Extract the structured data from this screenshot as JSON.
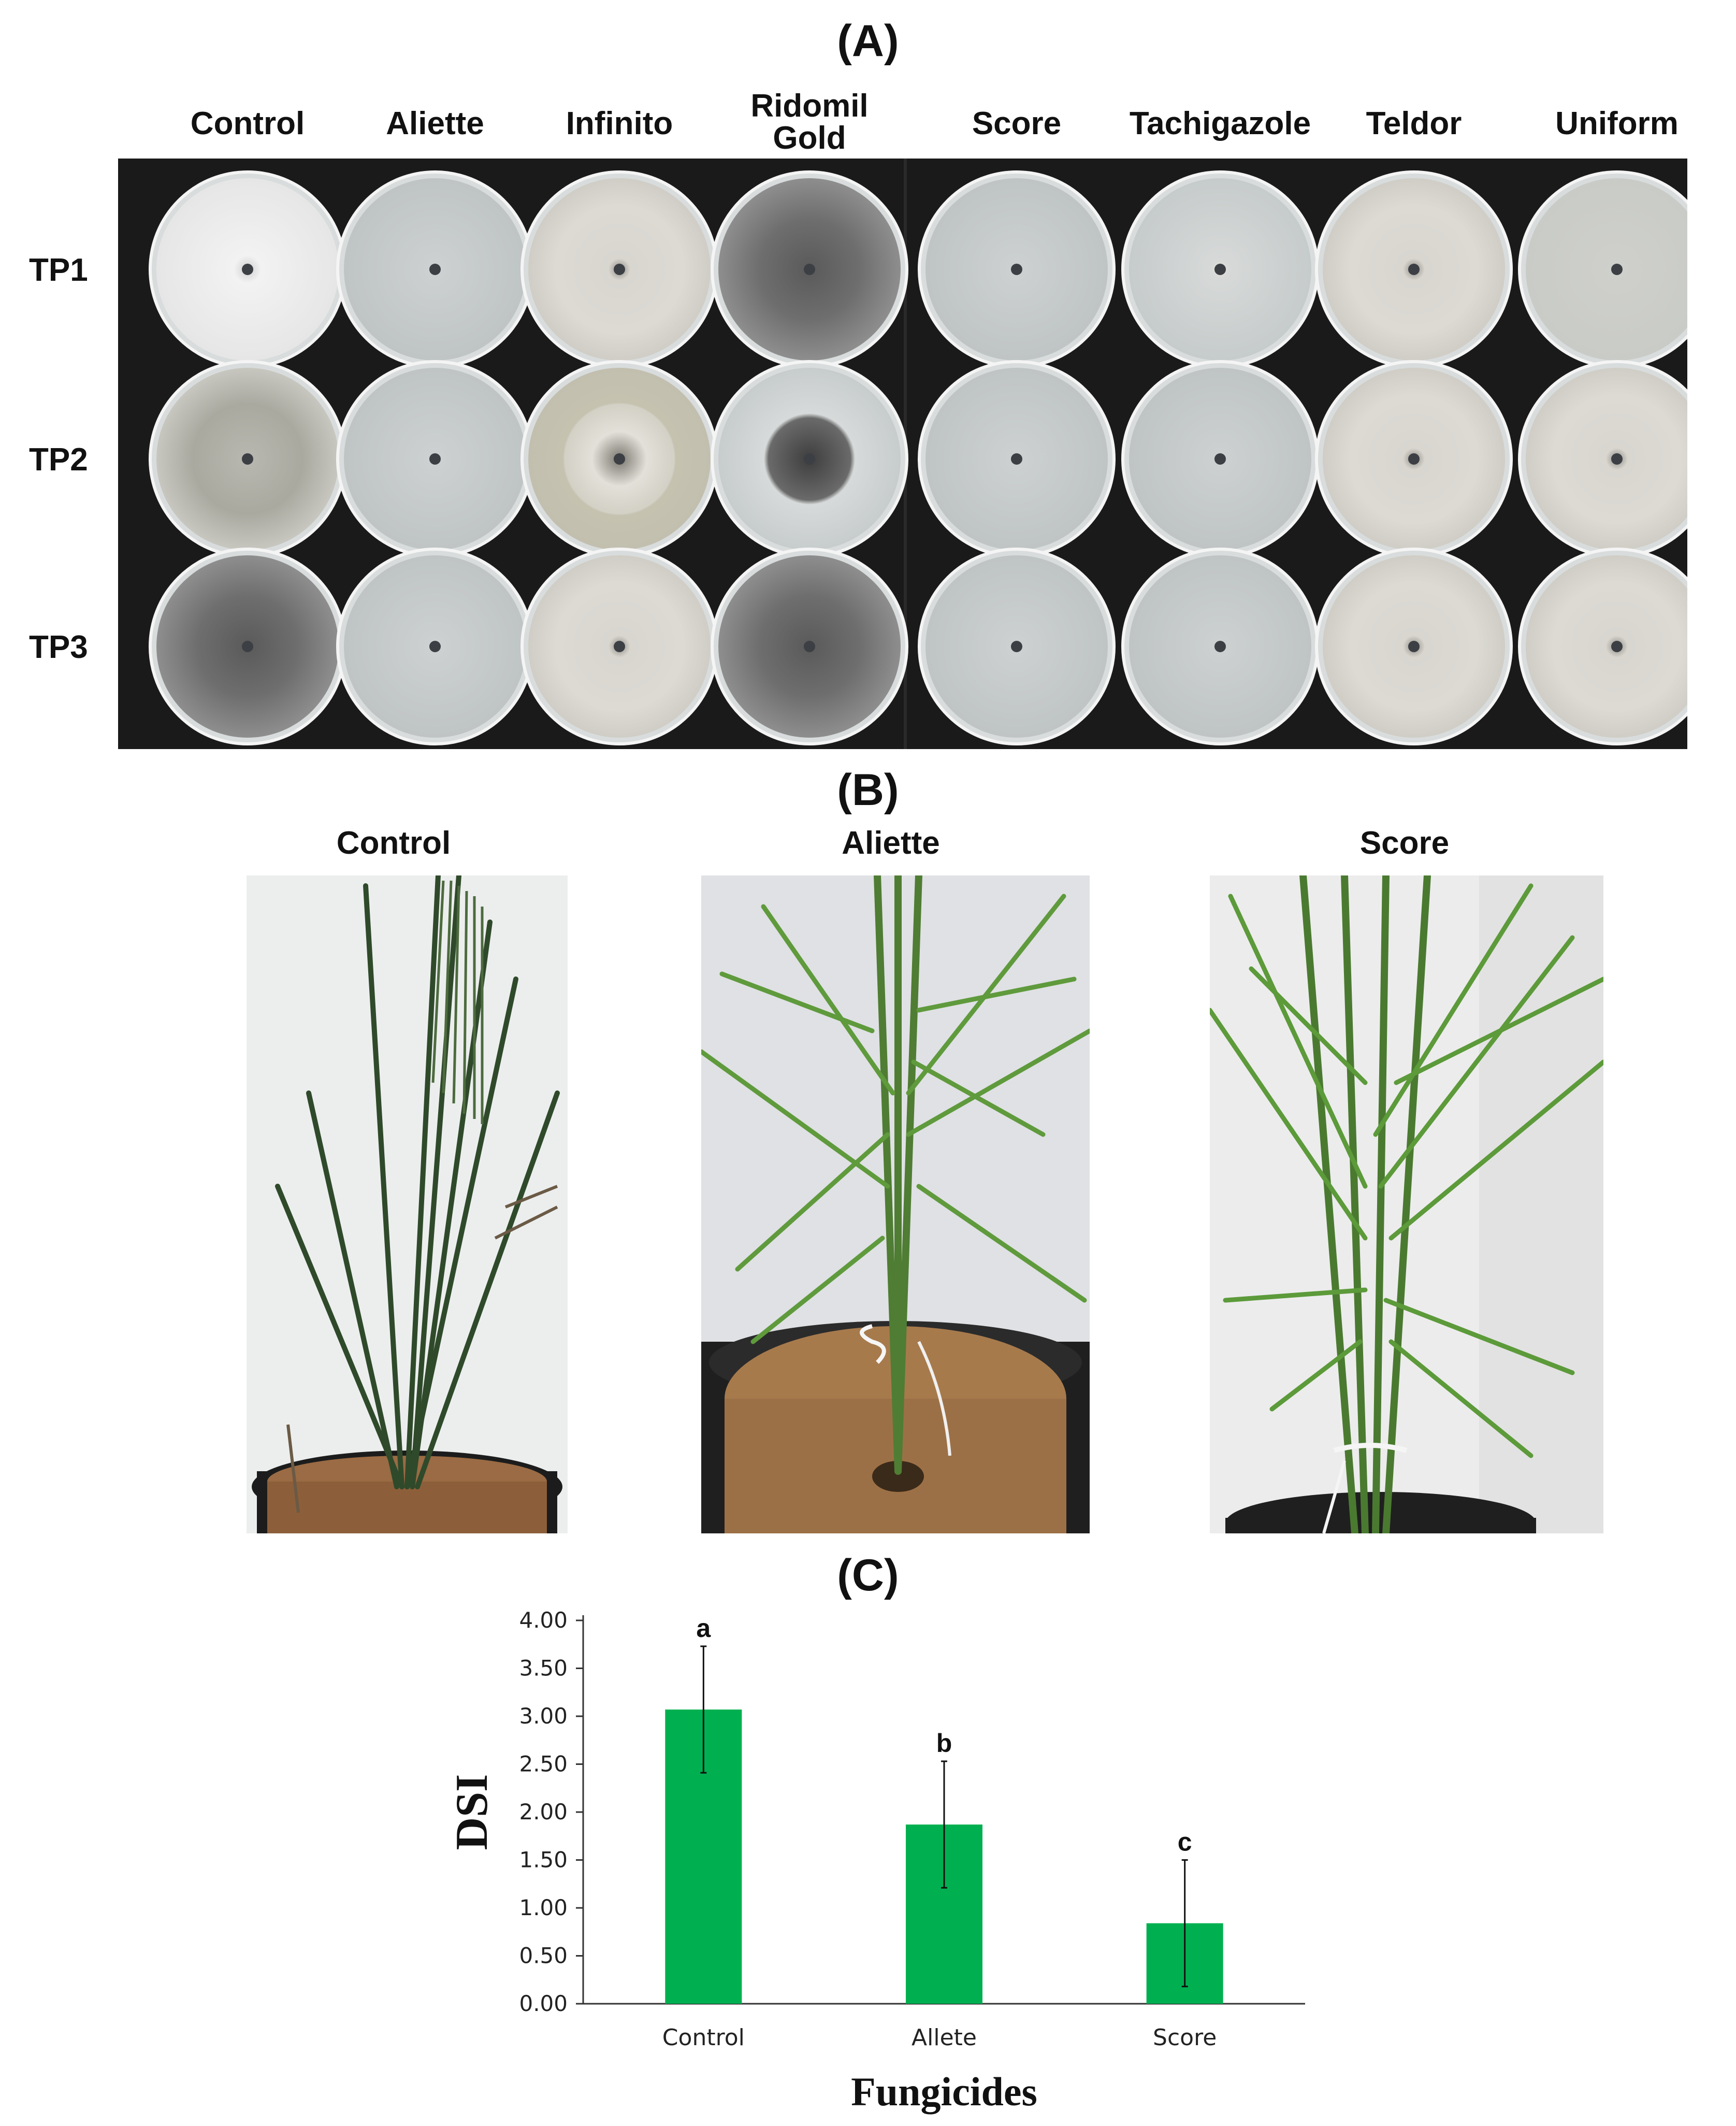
{
  "panels": {
    "a": "(A)",
    "b": "(B)",
    "c": "(C)"
  },
  "panel_a": {
    "columns": [
      "Control",
      "Aliette",
      "Infinito",
      "Ridomil\nGold",
      "Score",
      "Tachigazole",
      "Teldor",
      "Uniform"
    ],
    "rows": [
      "TP1",
      "TP2",
      "TP3"
    ],
    "plates": [
      [
        "white",
        "clear",
        "partial",
        "dark",
        "clear",
        "halo",
        "partial",
        "faint"
      ],
      [
        "grey",
        "clear",
        "ring",
        "darkring",
        "clear",
        "clear",
        "partial",
        "partial"
      ],
      [
        "dark",
        "clear",
        "partial",
        "dark",
        "clear",
        "clear",
        "partial",
        "partial"
      ]
    ]
  },
  "panel_b": {
    "titles": [
      "Control",
      "Aliette",
      "Score"
    ]
  },
  "chart_data": {
    "type": "bar",
    "categories": [
      "Control",
      "Allete",
      "Score"
    ],
    "values": [
      3.07,
      1.87,
      0.84
    ],
    "errors": [
      0.66,
      0.66,
      0.66
    ],
    "significance_letters": [
      "a",
      "b",
      "c"
    ],
    "ylabel": "DSI",
    "xlabel": "Fungicides",
    "ylim": [
      0,
      4
    ],
    "yticks": [
      "0.00",
      "0.50",
      "1.00",
      "1.50",
      "2.00",
      "2.50",
      "3.00",
      "3.50",
      "4.00"
    ],
    "bar_color": "#00b050",
    "grid": false
  }
}
